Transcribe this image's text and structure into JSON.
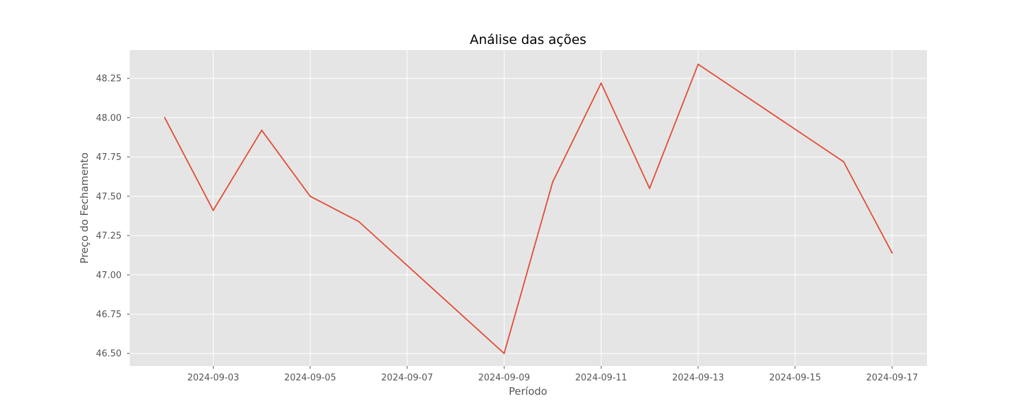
{
  "chart_data": {
    "type": "line",
    "title": "Análise das ações",
    "xlabel": "Período",
    "ylabel": "Preço do Fechamento",
    "x_ticks": [
      "2024-09-03",
      "2024-09-05",
      "2024-09-07",
      "2024-09-09",
      "2024-09-11",
      "2024-09-13",
      "2024-09-15",
      "2024-09-17"
    ],
    "y_ticks": [
      "46.50",
      "46.75",
      "47.00",
      "47.25",
      "47.50",
      "47.75",
      "48.00",
      "48.25"
    ],
    "xlim": [
      "2024-09-01 06:43",
      "2024-09-17 17:17"
    ],
    "ylim": [
      46.42,
      48.43
    ],
    "grid": true,
    "series": [
      {
        "color": "#E24A33",
        "points": [
          {
            "x": "2024-09-02",
            "y": 48.0
          },
          {
            "x": "2024-09-03",
            "y": 47.41
          },
          {
            "x": "2024-09-04",
            "y": 47.92
          },
          {
            "x": "2024-09-05",
            "y": 47.5
          },
          {
            "x": "2024-09-06",
            "y": 47.34
          },
          {
            "x": "2024-09-09",
            "y": 46.5
          },
          {
            "x": "2024-09-10",
            "y": 47.59
          },
          {
            "x": "2024-09-11",
            "y": 48.22
          },
          {
            "x": "2024-09-12",
            "y": 47.55
          },
          {
            "x": "2024-09-13",
            "y": 48.34
          },
          {
            "x": "2024-09-16",
            "y": 47.72
          },
          {
            "x": "2024-09-17",
            "y": 47.14
          }
        ]
      }
    ]
  },
  "colors": {
    "plot_background": "#E5E5E5",
    "grid": "#FFFFFF",
    "tick_text": "#555555"
  }
}
